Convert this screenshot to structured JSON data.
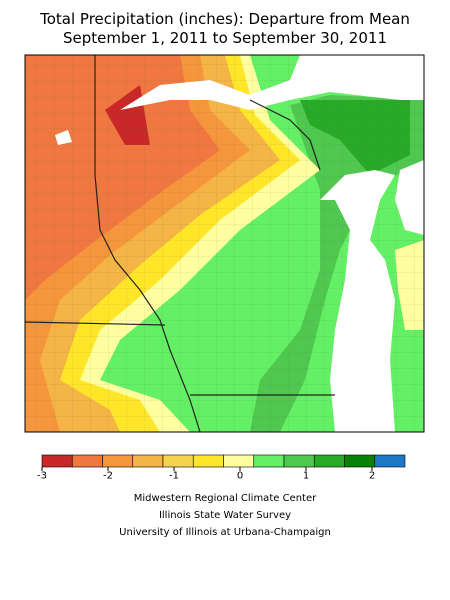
{
  "header": {
    "title_lines": [
      "Total Precipitation (inches): Departure from Mean",
      "September 1, 2011 to September 30, 2011"
    ]
  },
  "legend": {
    "bounds": [
      -3,
      2.5
    ],
    "colors": [
      "#c82828",
      "#f07840",
      "#f5963c",
      "#f5b446",
      "#f5d250",
      "#ffe628",
      "#ffffa0",
      "#64f064",
      "#50c850",
      "#28aa28",
      "#0a820a",
      "#1e78c8"
    ],
    "ticks": [
      -3,
      -2,
      -1,
      0,
      1,
      2
    ]
  },
  "credits": [
    "Midwestern Regional Climate Center",
    "Illinois State Water Survey",
    "University of Illinois at Urbana-Champaign"
  ]
}
